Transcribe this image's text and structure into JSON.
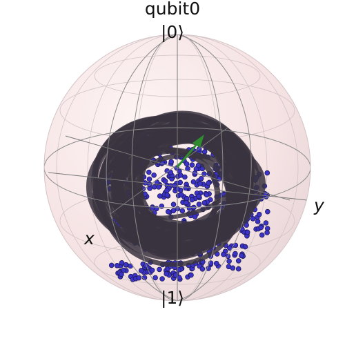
{
  "title": "qubit0",
  "labels": {
    "north_pole": "|0⟩",
    "south_pole": "|1⟩",
    "x_axis": "x",
    "y_axis": "y"
  },
  "colors": {
    "sphere_fill": "#fbecec",
    "frame": "#7a7a7a",
    "points_fill": "#3b33c8",
    "points_edge": "#1e1a55",
    "trajectory": "#3a3440",
    "vector": "#2e8b2e"
  },
  "vector_color_name": "green"
}
